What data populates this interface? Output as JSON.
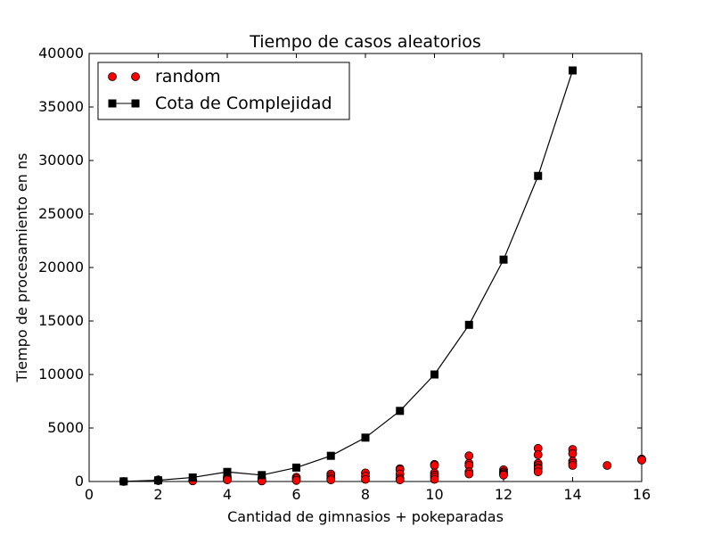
{
  "chart_data": {
    "type": "scatter",
    "title": "Tiempo de casos aleatorios",
    "xlabel": "Cantidad de gimnasios + pokeparadas",
    "ylabel": "Tiempo de procesamiento en ns",
    "xlim": [
      0,
      16
    ],
    "ylim": [
      0,
      40000
    ],
    "xticks": [
      0,
      2,
      4,
      6,
      8,
      10,
      12,
      14,
      16
    ],
    "yticks": [
      0,
      5000,
      10000,
      15000,
      20000,
      25000,
      30000,
      35000,
      40000
    ],
    "grid": false,
    "legend_position": "top-left",
    "series": [
      {
        "name": "random",
        "marker": "circle",
        "color": "#ff0000",
        "line": false,
        "points": [
          [
            1,
            0
          ],
          [
            2,
            150
          ],
          [
            2,
            80
          ],
          [
            3,
            120
          ],
          [
            3,
            60
          ],
          [
            4,
            400
          ],
          [
            4,
            250
          ],
          [
            4,
            150
          ],
          [
            5,
            250
          ],
          [
            5,
            100
          ],
          [
            5,
            50
          ],
          [
            6,
            400
          ],
          [
            6,
            250
          ],
          [
            6,
            100
          ],
          [
            7,
            700
          ],
          [
            7,
            500
          ],
          [
            7,
            300
          ],
          [
            7,
            150
          ],
          [
            8,
            800
          ],
          [
            8,
            500
          ],
          [
            8,
            200
          ],
          [
            9,
            1200
          ],
          [
            9,
            1100
          ],
          [
            9,
            700
          ],
          [
            9,
            300
          ],
          [
            9,
            150
          ],
          [
            10,
            1600
          ],
          [
            10,
            1500
          ],
          [
            10,
            800
          ],
          [
            10,
            600
          ],
          [
            10,
            400
          ],
          [
            10,
            200
          ],
          [
            11,
            2400
          ],
          [
            11,
            1700
          ],
          [
            11,
            1500
          ],
          [
            11,
            900
          ],
          [
            11,
            700
          ],
          [
            12,
            1100
          ],
          [
            12,
            900
          ],
          [
            12,
            800
          ],
          [
            12,
            700
          ],
          [
            12,
            600
          ],
          [
            13,
            3100
          ],
          [
            13,
            2500
          ],
          [
            13,
            1700
          ],
          [
            13,
            1500
          ],
          [
            13,
            1300
          ],
          [
            13,
            1200
          ],
          [
            13,
            900
          ],
          [
            14,
            3000
          ],
          [
            14,
            2600
          ],
          [
            14,
            1900
          ],
          [
            14,
            1700
          ],
          [
            14,
            1500
          ],
          [
            15,
            1500
          ],
          [
            16,
            2100
          ],
          [
            16,
            2000
          ]
        ]
      },
      {
        "name": "Cota de Complejidad",
        "marker": "square",
        "color": "#000000",
        "line": true,
        "points": [
          [
            1,
            14
          ],
          [
            2,
            112
          ],
          [
            3,
            378
          ],
          [
            4,
            896
          ],
          [
            5,
            600
          ],
          [
            6,
            1300
          ],
          [
            7,
            2400
          ],
          [
            8,
            4100
          ],
          [
            9,
            6600
          ],
          [
            10,
            10000
          ],
          [
            11,
            14641
          ],
          [
            12,
            20736
          ],
          [
            13,
            28561
          ],
          [
            14,
            38416
          ]
        ]
      }
    ]
  }
}
